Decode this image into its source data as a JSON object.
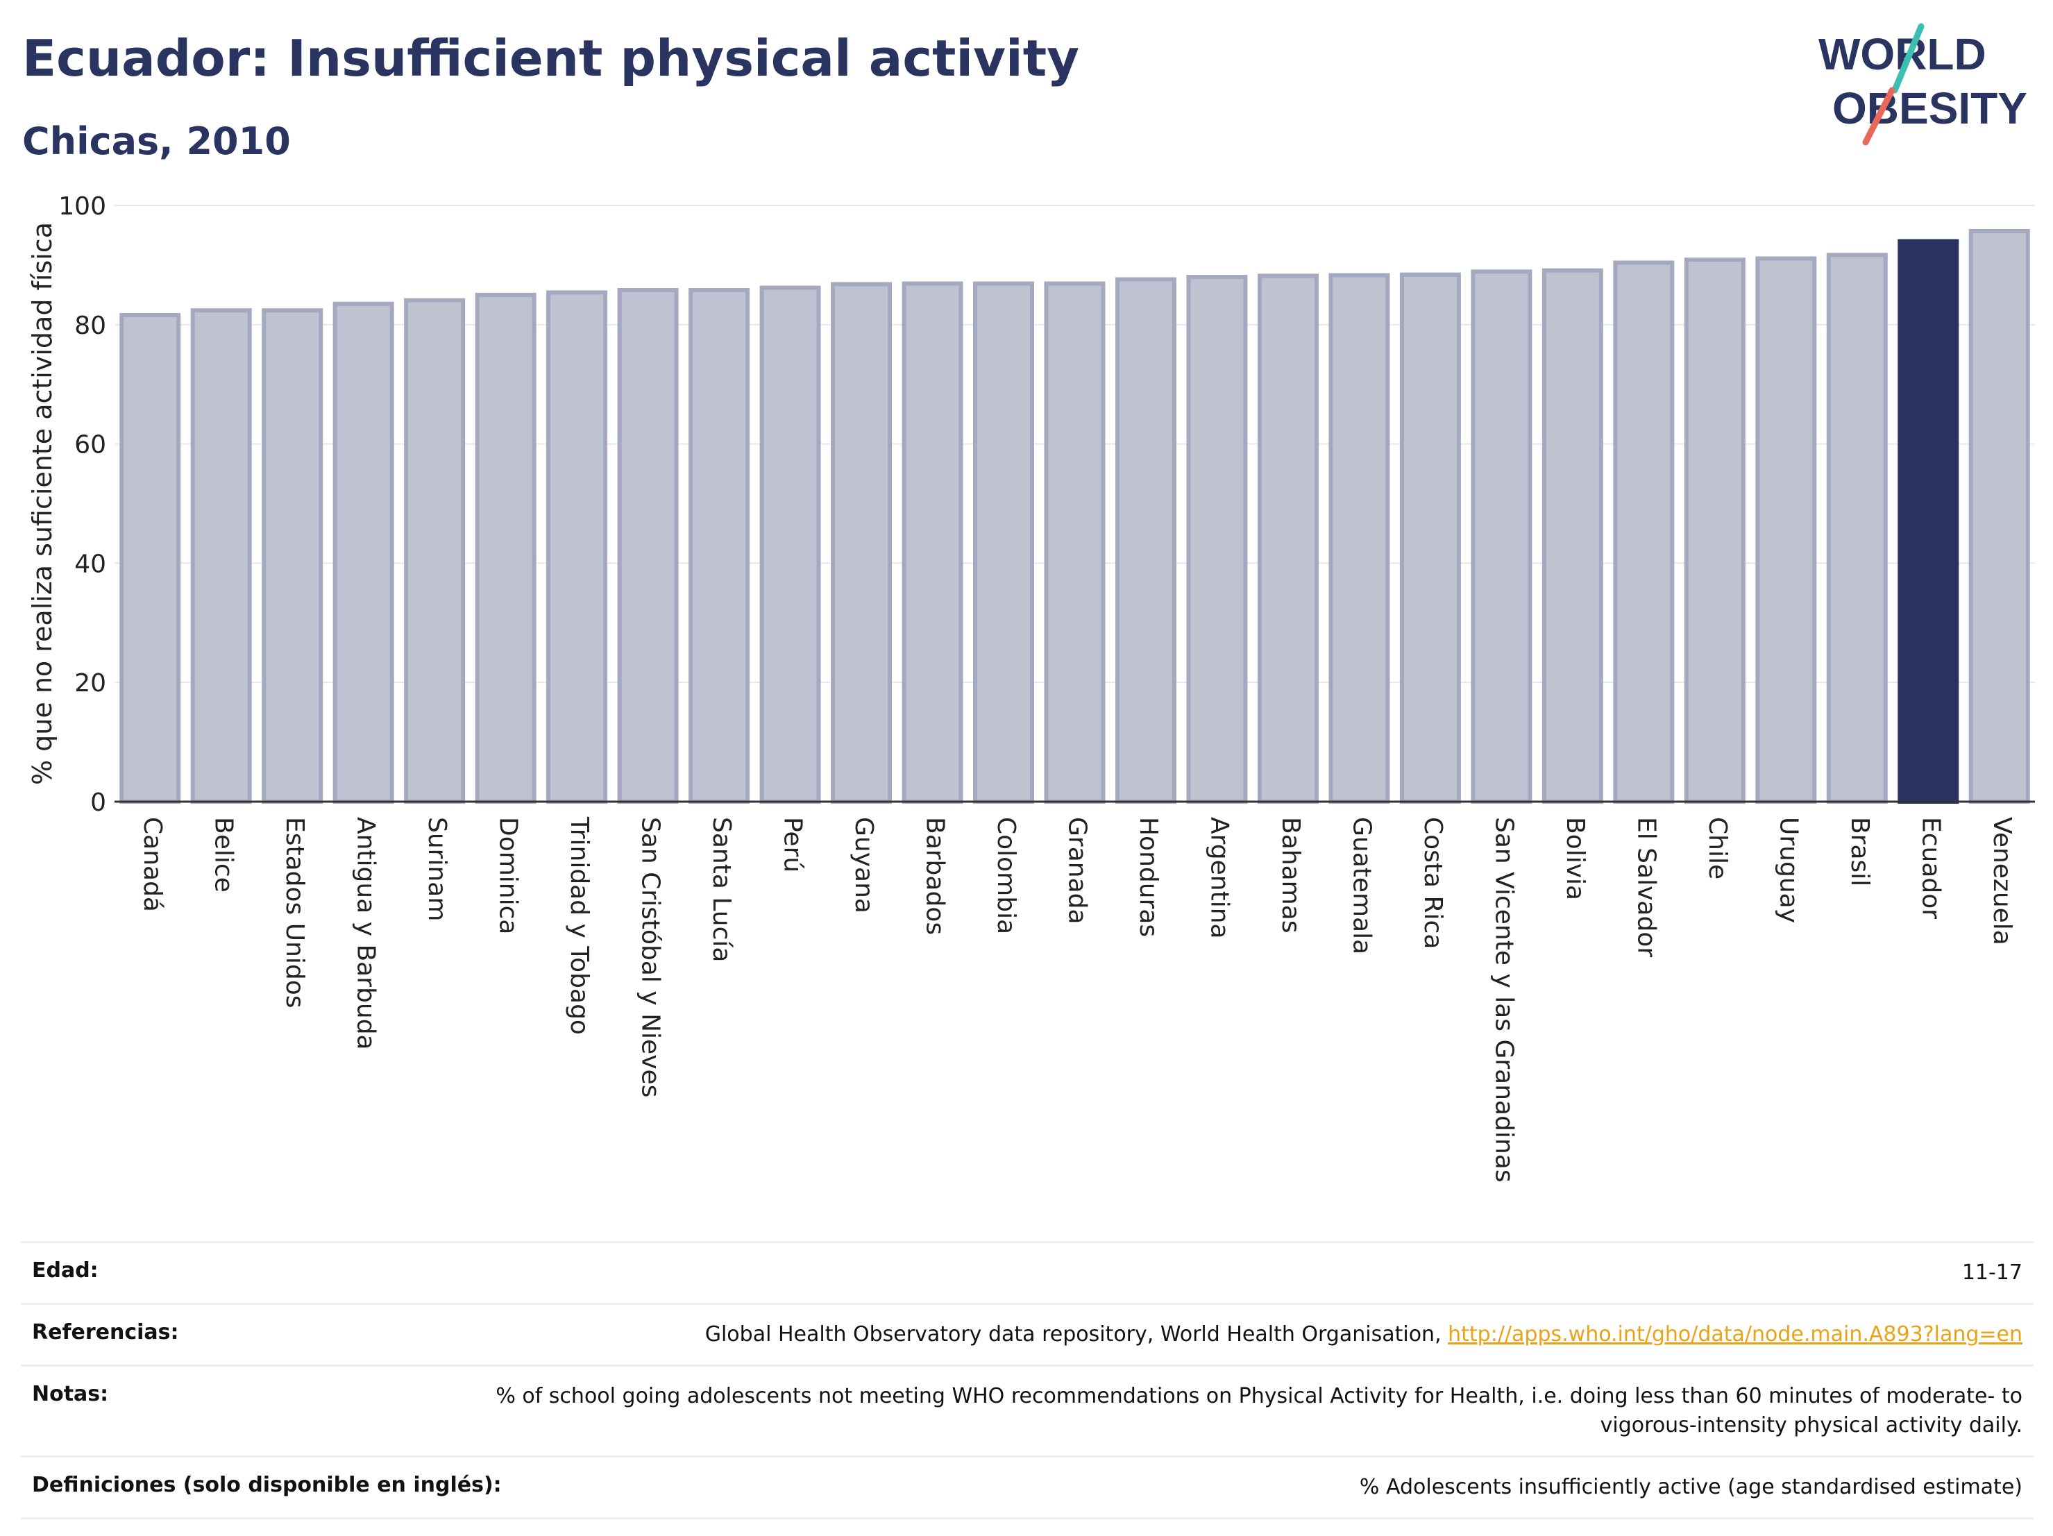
{
  "header": {
    "title": "Ecuador: Insufficient physical activity",
    "subtitle": "Chicas, 2010"
  },
  "logo": {
    "line1": "WORLD",
    "line2": "OBESITY",
    "accent_teal": "#3bbfb0",
    "accent_red": "#e8685a",
    "text_color": "#2a3460"
  },
  "chart_data": {
    "type": "bar",
    "title": "Ecuador: Insufficient physical activity",
    "subtitle": "Chicas, 2010",
    "xlabel": "",
    "ylabel": "% que no realiza suficiente actividad física",
    "ylim": [
      0,
      100
    ],
    "yticks": [
      0,
      20,
      40,
      60,
      80,
      100
    ],
    "grid": true,
    "highlight": "Ecuador",
    "colors": {
      "bar": "#bfc2d0",
      "bar_border": "#a5a9bf",
      "highlight": "#2a3460",
      "grid": "#e6e7ec"
    },
    "categories": [
      "Canadá",
      "Belice",
      "Estados Unidos",
      "Antigua y Barbuda",
      "Surinam",
      "Dominica",
      "Trinidad y Tobago",
      "San Cristóbal y Nieves",
      "Santa Lucía",
      "Perú",
      "Guyana",
      "Barbados",
      "Colombia",
      "Granada",
      "Honduras",
      "Argentina",
      "Bahamas",
      "Guatemala",
      "Costa Rica",
      "San Vicente y las Granadinas",
      "Bolivia",
      "El Salvador",
      "Chile",
      "Uruguay",
      "Brasil",
      "Ecuador",
      "Venezuela"
    ],
    "values": [
      81.6,
      82.4,
      82.4,
      83.5,
      84.1,
      85.0,
      85.4,
      85.8,
      85.8,
      86.2,
      86.8,
      86.9,
      86.9,
      86.9,
      87.6,
      88.0,
      88.2,
      88.3,
      88.4,
      88.9,
      89.1,
      90.4,
      90.9,
      91.1,
      91.7,
      94.0,
      95.7
    ]
  },
  "info": {
    "rows": [
      {
        "label": "Edad:",
        "value": "11-17"
      },
      {
        "label": "Referencias:",
        "value": "Global Health Observatory data repository, World Health Organisation, ",
        "link": "http://apps.who.int/gho/data/node.main.A893?lang=en"
      },
      {
        "label": "Notas:",
        "value": "% of school going adolescents not meeting WHO recommendations on Physical Activity for Health, i.e. doing less than 60 minutes of moderate- to vigorous-intensity physical activity daily."
      },
      {
        "label": "Definiciones (solo disponible en inglés):",
        "value": "% Adolescents insufficiently active (age standardised estimate)"
      }
    ]
  }
}
